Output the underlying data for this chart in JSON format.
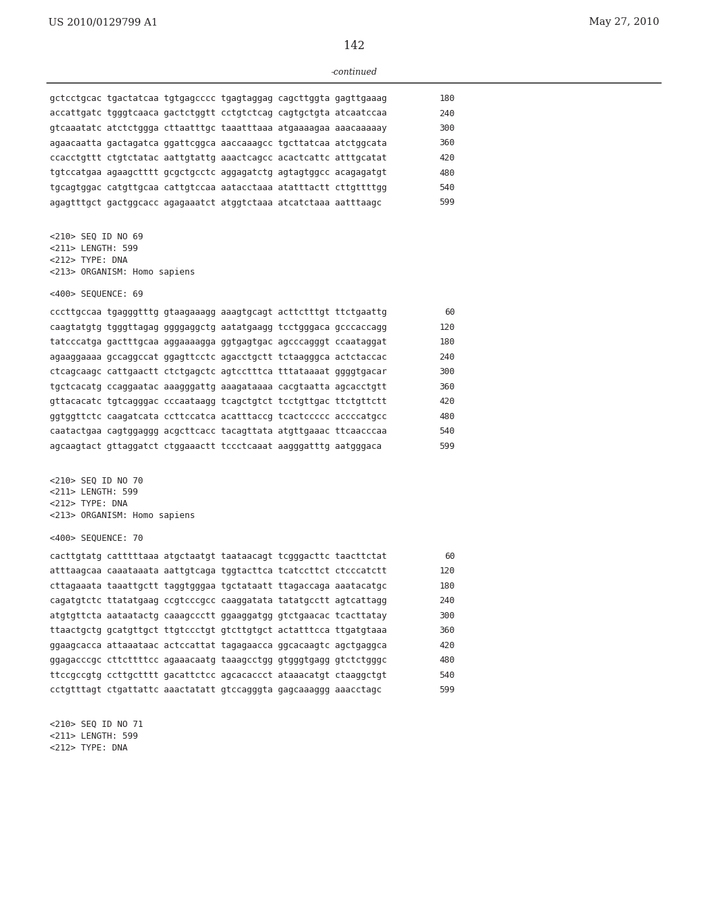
{
  "header_left": "US 2010/0129799 A1",
  "header_right": "May 27, 2010",
  "page_number": "142",
  "continued_label": "-continued",
  "background_color": "#ffffff",
  "text_color": "#231f20",
  "font_size_body": 9.0,
  "font_size_header": 10.5,
  "font_size_page": 11.5,
  "sections": [
    {
      "type": "sequence",
      "lines": [
        [
          "gctcctgcac tgactatcaa tgtgagcccc tgagtaggag cagcttggta gagttgaaag",
          "180"
        ],
        [
          "accattgatc tgggtcaaca gactctggtt cctgtctcag cagtgctgta atcaatccaa",
          "240"
        ],
        [
          "gtcaaatatc atctctggga cttaatttgc taaatttaaa atgaaaagaa aaacaaaaay",
          "300"
        ],
        [
          "agaacaatta gactagatca ggattcggca aaccaaagcc tgcttatcaa atctggcata",
          "360"
        ],
        [
          "ccacctgttt ctgtctatac aattgtattg aaactcagcc acactcattc atttgcatat",
          "420"
        ],
        [
          "tgtccatgaa agaagctttt gcgctgcctc aggagatctg agtagtggcc acagagatgt",
          "480"
        ],
        [
          "tgcagtggac catgttgcaa cattgtccaa aatacctaaa atatttactt cttgttttgg",
          "540"
        ],
        [
          "agagtttgct gactggcacc agagaaatct atggtctaaa atcatctaaa aatttaagc",
          "599"
        ]
      ]
    },
    {
      "type": "metadata",
      "lines": [
        "<210> SEQ ID NO 69",
        "<211> LENGTH: 599",
        "<212> TYPE: DNA",
        "<213> ORGANISM: Homo sapiens"
      ]
    },
    {
      "type": "label",
      "lines": [
        "<400> SEQUENCE: 69"
      ]
    },
    {
      "type": "sequence",
      "lines": [
        [
          "cccttgccaa tgagggtttg gtaagaaagg aaagtgcagt acttctttgt ttctgaattg",
          "60"
        ],
        [
          "caagtatgtg tgggttagag ggggaggctg aatatgaagg tcctgggaca gcccaccagg",
          "120"
        ],
        [
          "tatcccatga gactttgcaa aggaaaagga ggtgagtgac agcccagggt ccaataggat",
          "180"
        ],
        [
          "agaaggaaaa gccaggccat ggagttcctc agacctgctt tctaagggca actctaccac",
          "240"
        ],
        [
          "ctcagcaagc cattgaactt ctctgagctc agtcctttca tttataaaat ggggtgacar",
          "300"
        ],
        [
          "tgctcacatg ccaggaatac aaagggattg aaagataaaa cacgtaatta agcacctgtt",
          "360"
        ],
        [
          "gttacacatc tgtcagggac cccaataagg tcagctgtct tcctgttgac ttctgttctt",
          "420"
        ],
        [
          "ggtggttctc caagatcata ccttccatca acatttaccg tcactccccc accccatgcc",
          "480"
        ],
        [
          "caatactgaa cagtggaggg acgcttcacc tacagttata atgttgaaac ttcaacccaa",
          "540"
        ],
        [
          "agcaagtact gttaggatct ctggaaactt tccctcaaat aagggatttg aatgggaca",
          "599"
        ]
      ]
    },
    {
      "type": "metadata",
      "lines": [
        "<210> SEQ ID NO 70",
        "<211> LENGTH: 599",
        "<212> TYPE: DNA",
        "<213> ORGANISM: Homo sapiens"
      ]
    },
    {
      "type": "label",
      "lines": [
        "<400> SEQUENCE: 70"
      ]
    },
    {
      "type": "sequence",
      "lines": [
        [
          "cacttgtatg catttttaaa atgctaatgt taataacagt tcgggacttc taacttctat",
          "60"
        ],
        [
          "atttaagcaa caaataaata aattgtcaga tggtacttca tcatccttct ctcccatctt",
          "120"
        ],
        [
          "cttagaaata taaattgctt taggtgggaa tgctataatt ttagaccaga aaatacatgc",
          "180"
        ],
        [
          "cagatgtctc ttatatgaag ccgtcccgcc caaggatata tatatgcctt agtcattagg",
          "240"
        ],
        [
          "atgtgttcta aataatactg caaagccctt ggaaggatgg gtctgaacac tcacttatay",
          "300"
        ],
        [
          "ttaactgctg gcatgttgct ttgtccctgt gtcttgtgct actatttcca ttgatgtaaa",
          "360"
        ],
        [
          "ggaagcacca attaaataac actccattat tagagaacca ggcacaagtc agctgaggca",
          "420"
        ],
        [
          "ggagacccgc cttcttttcc agaaacaatg taaagcctgg gtgggtgagg gtctctgggc",
          "480"
        ],
        [
          "ttccgccgtg ccttgctttt gacattctcc agcacaccct ataaacatgt ctaaggctgt",
          "540"
        ],
        [
          "cctgtttagt ctgattattc aaactatatt gtccagggta gagcaaaggg aaacctagc",
          "599"
        ]
      ]
    },
    {
      "type": "metadata_partial",
      "lines": [
        "<210> SEQ ID NO 71",
        "<211> LENGTH: 599",
        "<212> TYPE: DNA"
      ]
    }
  ]
}
